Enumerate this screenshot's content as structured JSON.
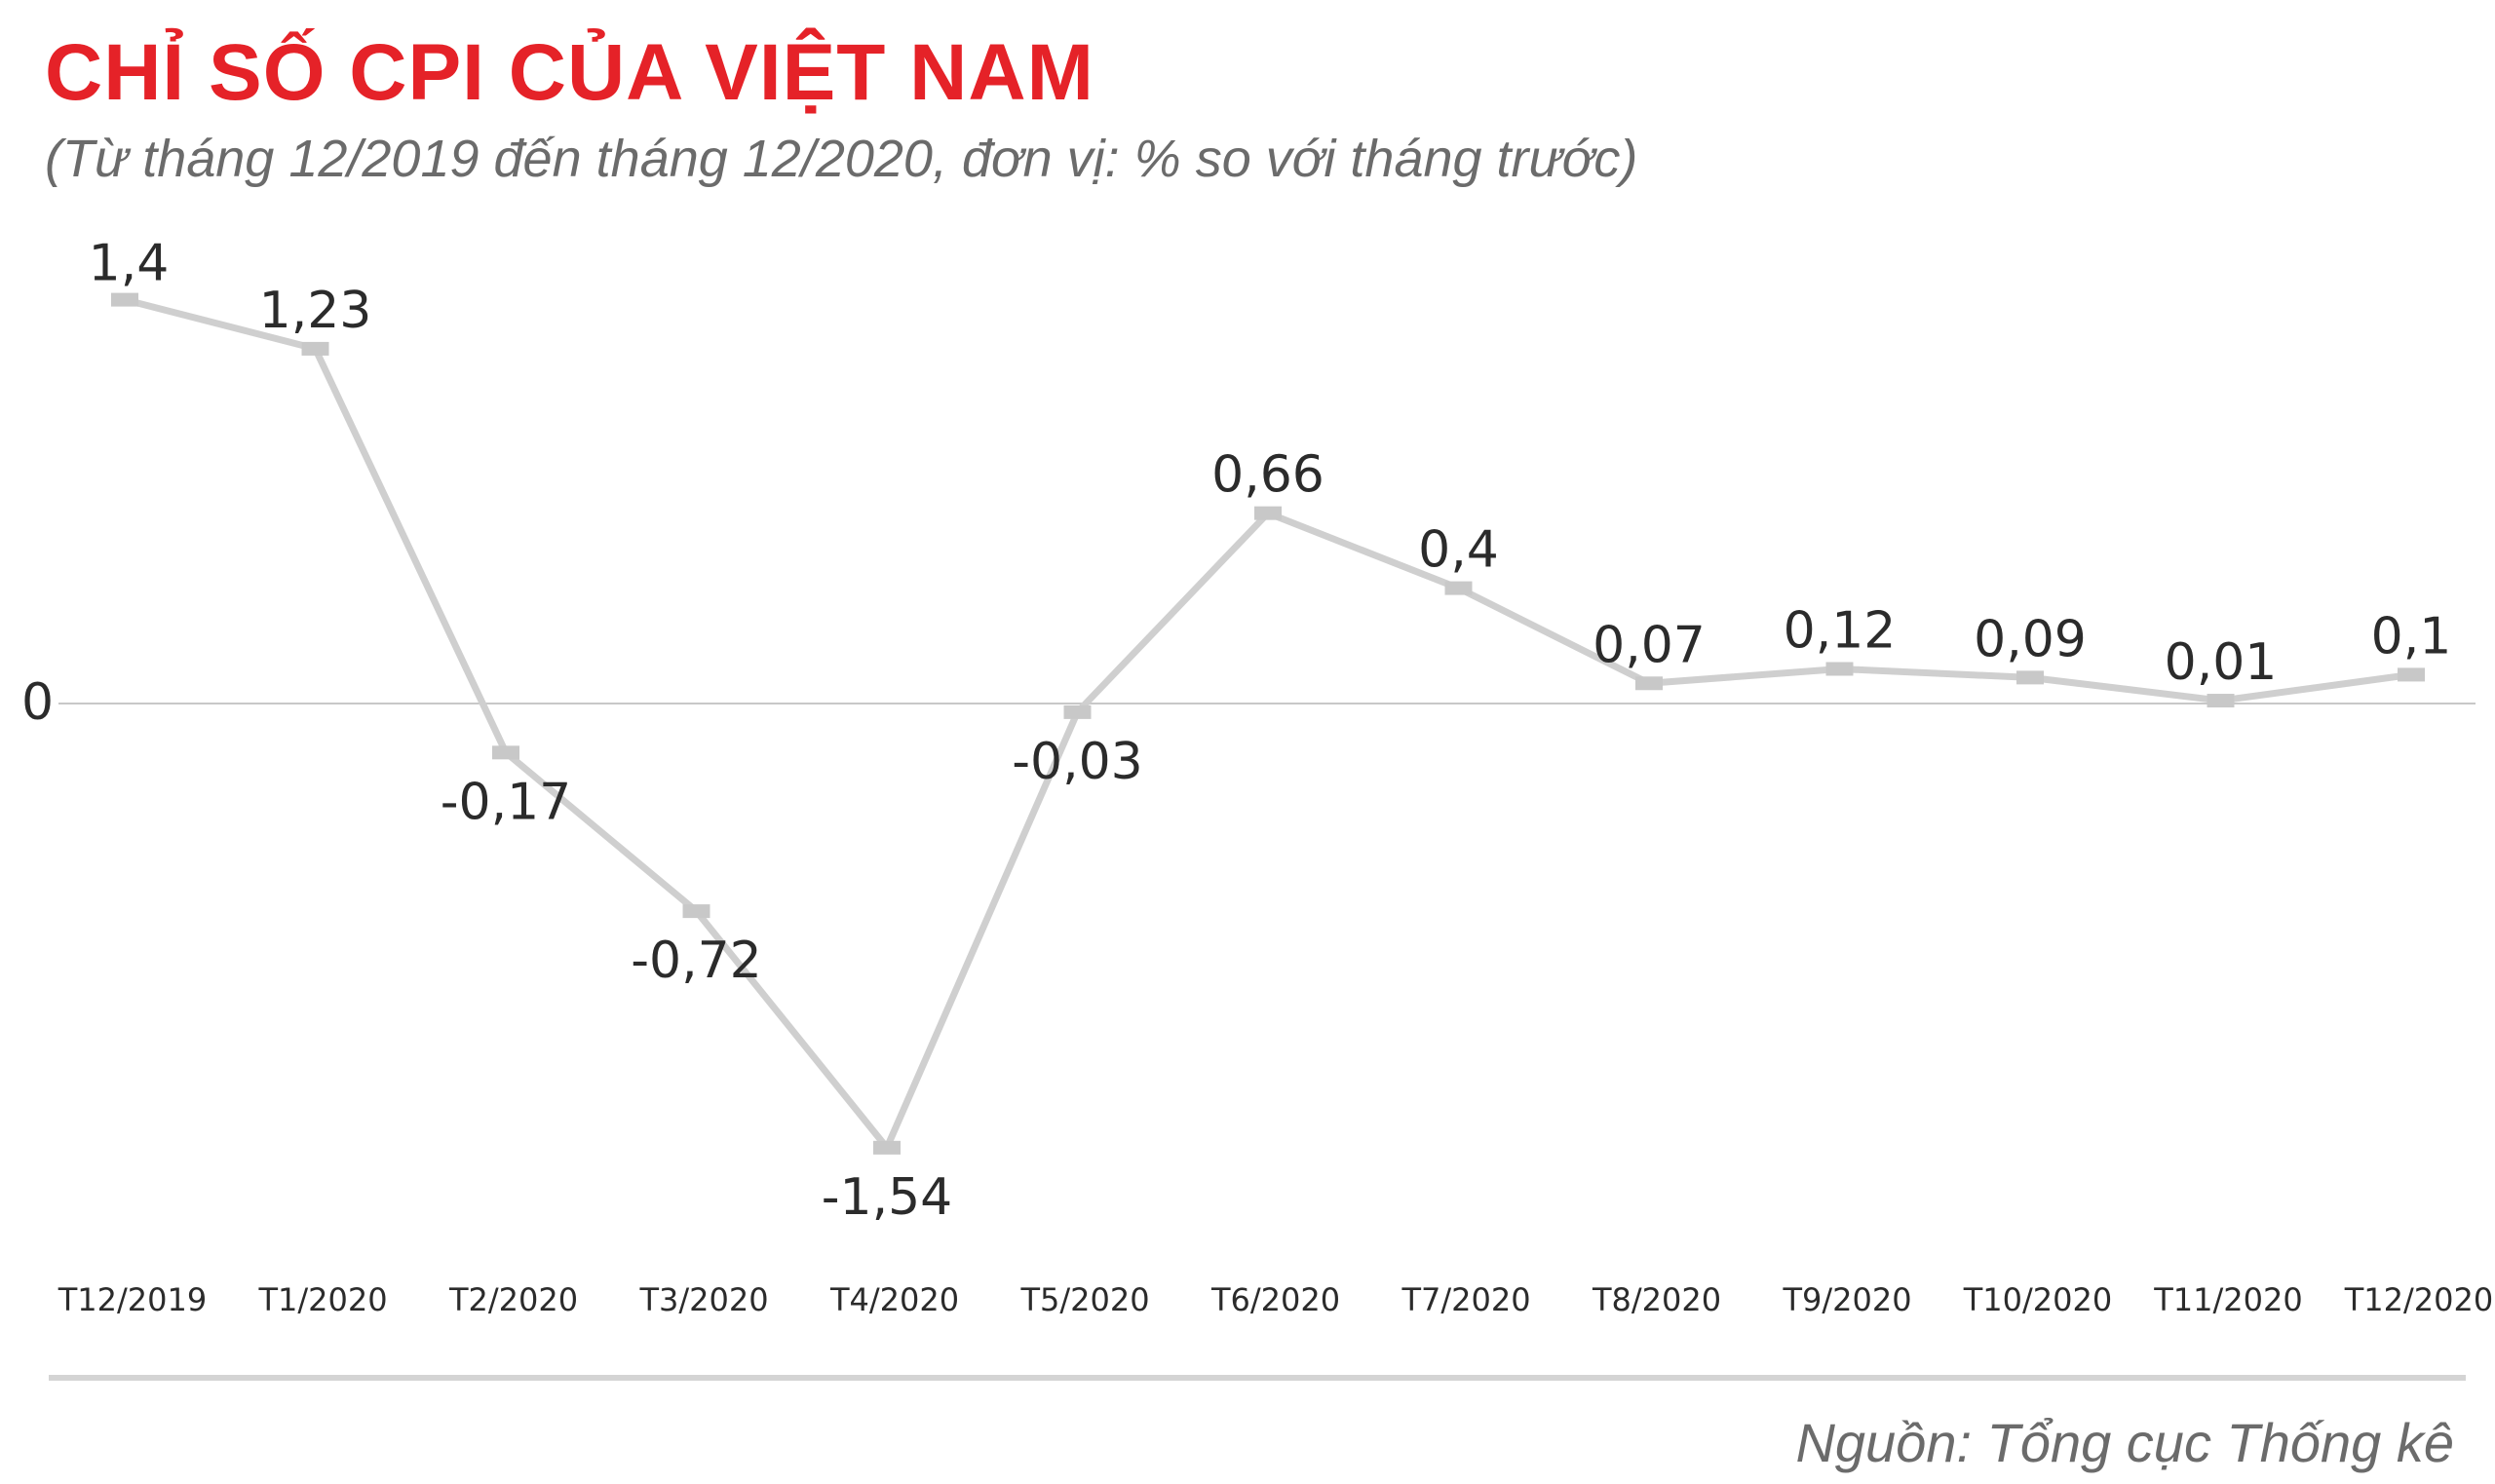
{
  "header": {
    "title": "CHỈ SỐ CPI CỦA VIỆT NAM",
    "subtitle": "(Từ tháng 12/2019 đến tháng 12/2020, đơn vị: % so với tháng trước)"
  },
  "footer": {
    "source": "Nguồn: Tổng cục Thống kê"
  },
  "colors": {
    "title": "#e52228",
    "line": "#cfcfcf",
    "marker": "#c8c8c8",
    "label": "#2b2b2b",
    "highlight": "#e52228",
    "baseline": "#c8c8c8"
  },
  "chart_data": {
    "type": "line",
    "categories": [
      "T12/2019",
      "T1/2020",
      "T2/2020",
      "T3/2020",
      "T4/2020",
      "T5/2020",
      "T6/2020",
      "T7/2020",
      "T8/2020",
      "T9/2020",
      "T10/2020",
      "T11/2020",
      "T12/2020"
    ],
    "series": [
      {
        "values": [
          1.4,
          1.23,
          -0.17,
          -0.72,
          -1.54,
          -0.03,
          0.66,
          0.4,
          0.07,
          0.12,
          0.09,
          0.01,
          0.1
        ]
      }
    ],
    "data_labels": [
      "1,4",
      "1,23",
      "-0,17",
      "-0,72",
      "-1,54",
      "-0,03",
      "0,66",
      "0,4",
      "0,07",
      "0,12",
      "0,09",
      "0,01",
      "0,1"
    ],
    "highlight_index": 12,
    "baseline": {
      "value": 0,
      "label": "0"
    },
    "ylim": [
      -1.54,
      1.4
    ],
    "grid": false,
    "legend": "none"
  }
}
